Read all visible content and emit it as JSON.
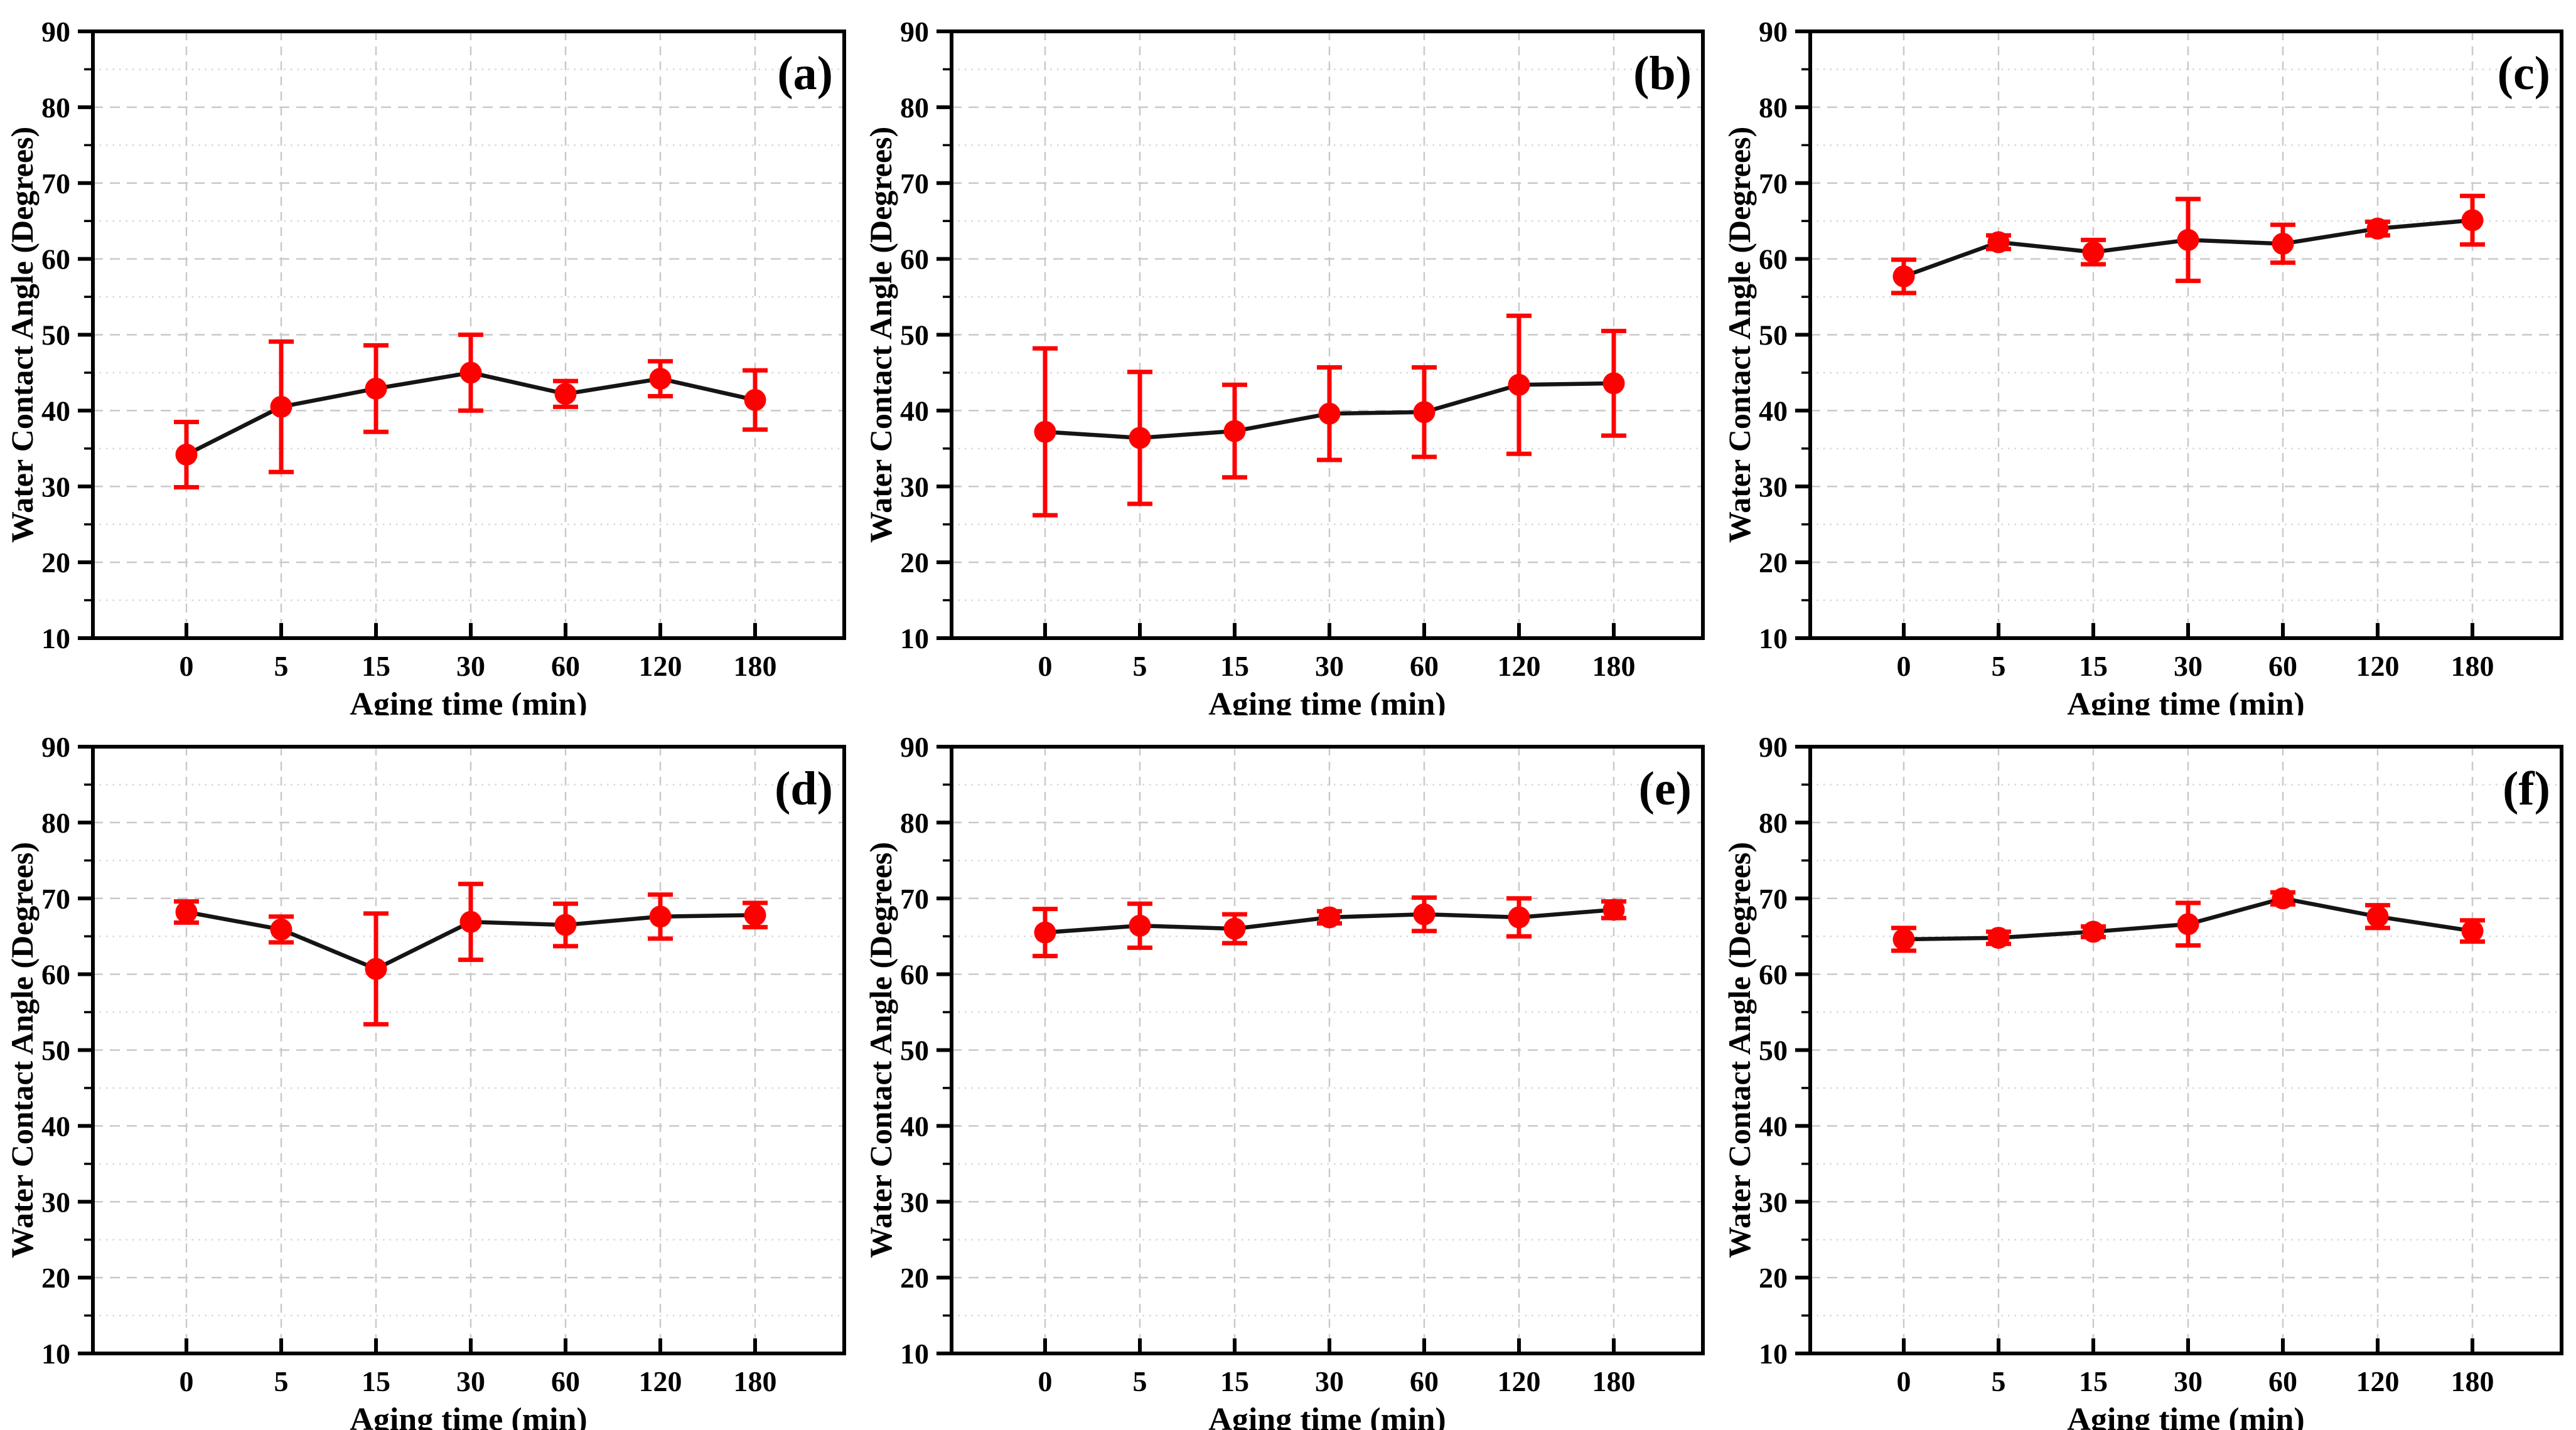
{
  "figure": {
    "description": "Six-panel figure of water contact angle vs aging time with error bars",
    "panel_labels": [
      "(a)",
      "(b)",
      "(c)",
      "(d)",
      "(e)",
      "(f)"
    ]
  },
  "styles": {
    "marker_color": "#ff0000",
    "errorbar_color": "#ff0000",
    "line_color": "#151515",
    "frame_color": "#000000",
    "grid_major_color": "#c9c9c9",
    "grid_minor_color": "#d6d6d6",
    "text_color": "#000000",
    "background": "#ffffff"
  },
  "chart_data": [
    {
      "type": "line",
      "panel_label": "(a)",
      "xlabel": "Aging time (min)",
      "ylabel": "Water Contact Angle (Degrees)",
      "x_categories": [
        "0",
        "5",
        "15",
        "30",
        "60",
        "120",
        "180"
      ],
      "y_tick_labels": [
        "10",
        "20",
        "30",
        "40",
        "50",
        "60",
        "70",
        "80",
        "90"
      ],
      "ylim": [
        10,
        90
      ],
      "y_major_step": 10,
      "y_minor_step": 5,
      "grid": true,
      "legend": "none",
      "series": [
        {
          "name": "water contact angle",
          "marker": "circle",
          "values": [
            34.2,
            40.5,
            42.9,
            45.0,
            42.2,
            44.2,
            41.4
          ],
          "errors": [
            4.3,
            8.6,
            5.7,
            5.0,
            1.7,
            2.3,
            3.9
          ]
        }
      ]
    },
    {
      "type": "line",
      "panel_label": "(b)",
      "xlabel": "Aging time (min)",
      "ylabel": "Water Contact Angle (Degrees)",
      "x_categories": [
        "0",
        "5",
        "15",
        "30",
        "60",
        "120",
        "180"
      ],
      "y_tick_labels": [
        "10",
        "20",
        "30",
        "40",
        "50",
        "60",
        "70",
        "80",
        "90"
      ],
      "ylim": [
        10,
        90
      ],
      "y_major_step": 10,
      "y_minor_step": 5,
      "grid": true,
      "legend": "none",
      "series": [
        {
          "name": "water contact angle",
          "marker": "circle",
          "values": [
            37.2,
            36.4,
            37.3,
            39.6,
            39.8,
            43.4,
            43.6
          ],
          "errors": [
            11.0,
            8.7,
            6.1,
            6.1,
            5.9,
            9.1,
            6.9
          ]
        }
      ]
    },
    {
      "type": "line",
      "panel_label": "(c)",
      "xlabel": "Aging time (min)",
      "ylabel": "Water Contact Angle (Degrees)",
      "x_categories": [
        "0",
        "5",
        "15",
        "30",
        "60",
        "120",
        "180"
      ],
      "y_tick_labels": [
        "10",
        "20",
        "30",
        "40",
        "50",
        "60",
        "70",
        "80",
        "90"
      ],
      "ylim": [
        10,
        90
      ],
      "y_major_step": 10,
      "y_minor_step": 5,
      "grid": true,
      "legend": "none",
      "series": [
        {
          "name": "water contact angle",
          "marker": "circle",
          "values": [
            57.7,
            62.2,
            60.9,
            62.5,
            62.0,
            64.0,
            65.1
          ],
          "errors": [
            2.2,
            0.9,
            1.6,
            5.4,
            2.5,
            0.9,
            3.2
          ]
        }
      ]
    },
    {
      "type": "line",
      "panel_label": "(d)",
      "xlabel": "Aging time (min)",
      "ylabel": "Water Contact Angle (Degrees)",
      "x_categories": [
        "0",
        "5",
        "15",
        "30",
        "60",
        "120",
        "180"
      ],
      "y_tick_labels": [
        "10",
        "20",
        "30",
        "40",
        "50",
        "60",
        "70",
        "80",
        "90"
      ],
      "ylim": [
        10,
        90
      ],
      "y_major_step": 10,
      "y_minor_step": 5,
      "grid": true,
      "legend": "none",
      "series": [
        {
          "name": "water contact angle",
          "marker": "circle",
          "values": [
            68.2,
            65.9,
            60.7,
            66.9,
            66.5,
            67.6,
            67.8
          ],
          "errors": [
            1.4,
            1.7,
            7.3,
            5.0,
            2.8,
            2.9,
            1.6
          ]
        }
      ]
    },
    {
      "type": "line",
      "panel_label": "(e)",
      "xlabel": "Aging time (min)",
      "ylabel": "Water Contact Angle (Degrees)",
      "x_categories": [
        "0",
        "5",
        "15",
        "30",
        "60",
        "120",
        "180"
      ],
      "y_tick_labels": [
        "10",
        "20",
        "30",
        "40",
        "50",
        "60",
        "70",
        "80",
        "90"
      ],
      "ylim": [
        10,
        90
      ],
      "y_major_step": 10,
      "y_minor_step": 5,
      "grid": true,
      "legend": "none",
      "series": [
        {
          "name": "water contact angle",
          "marker": "circle",
          "values": [
            65.5,
            66.4,
            66.0,
            67.5,
            67.9,
            67.5,
            68.5
          ],
          "errors": [
            3.1,
            2.9,
            1.9,
            0.8,
            2.2,
            2.5,
            1.1
          ]
        }
      ]
    },
    {
      "type": "line",
      "panel_label": "(f)",
      "xlabel": "Aging time (min)",
      "ylabel": "Water Contact Angle (Degrees)",
      "x_categories": [
        "0",
        "5",
        "15",
        "30",
        "60",
        "120",
        "180"
      ],
      "y_tick_labels": [
        "10",
        "20",
        "30",
        "40",
        "50",
        "60",
        "70",
        "80",
        "90"
      ],
      "ylim": [
        10,
        90
      ],
      "y_major_step": 10,
      "y_minor_step": 5,
      "grid": true,
      "legend": "none",
      "series": [
        {
          "name": "water contact angle",
          "marker": "circle",
          "values": [
            64.6,
            64.8,
            65.6,
            66.6,
            70.0,
            67.6,
            65.7
          ],
          "errors": [
            1.5,
            0.8,
            0.7,
            2.8,
            0.8,
            1.5,
            1.4
          ]
        }
      ]
    }
  ]
}
